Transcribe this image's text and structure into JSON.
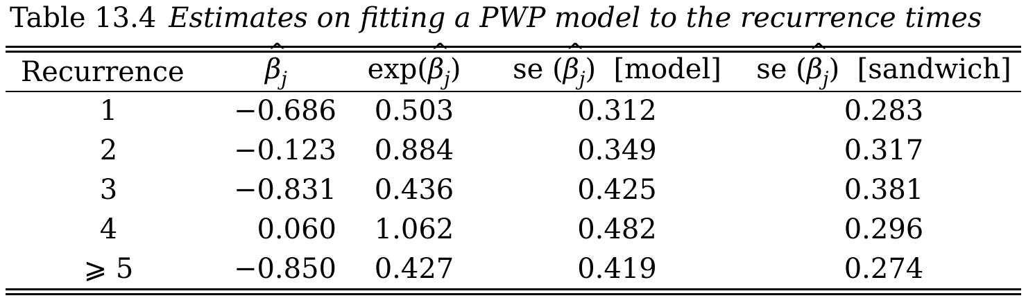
{
  "caption": {
    "label": "Table 13.4",
    "text": "Estimates on fitting a PWP model to the recurrence times"
  },
  "table": {
    "headers": {
      "recurrence": "Recurrence",
      "beta_symbol": "β",
      "beta_hat": "^",
      "beta_sub": "j",
      "exp_prefix": "exp(",
      "exp_suffix": ")",
      "se_prefix": "se (",
      "se_close": ")",
      "se_model_tag": "[model]",
      "se_sandwich_tag": "[sandwich]"
    },
    "rows": [
      {
        "recurrence": "1",
        "beta": "−0.686",
        "exp_beta": "0.503",
        "se_model": "0.312",
        "se_sandwich": "0.283"
      },
      {
        "recurrence": "2",
        "beta": "−0.123",
        "exp_beta": "0.884",
        "se_model": "0.349",
        "se_sandwich": "0.317"
      },
      {
        "recurrence": "3",
        "beta": "−0.831",
        "exp_beta": "0.436",
        "se_model": "0.425",
        "se_sandwich": "0.381"
      },
      {
        "recurrence": "4",
        "beta": "0.060",
        "exp_beta": "1.062",
        "se_model": "0.482",
        "se_sandwich": "0.296"
      },
      {
        "recurrence": "⩾ 5",
        "beta": "−0.850",
        "exp_beta": "0.427",
        "se_model": "0.419",
        "se_sandwich": "0.274"
      }
    ]
  }
}
